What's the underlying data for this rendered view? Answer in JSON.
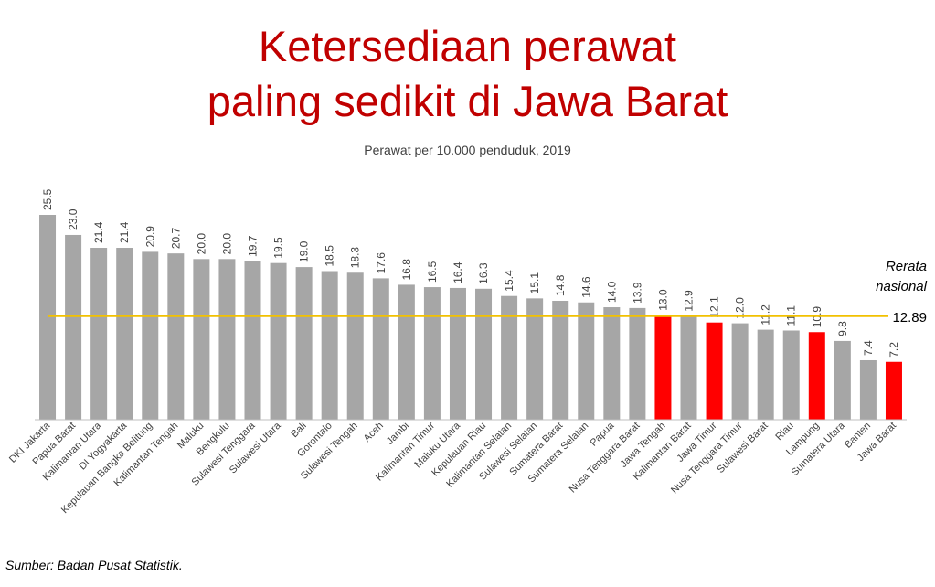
{
  "header": {
    "title_line1": "Ketersediaan perawat",
    "title_line2": "paling sedikit di Jawa Barat",
    "subtitle": "Perawat per 10.000 penduduk, 2019"
  },
  "footer": {
    "source": "Sumber: Badan Pusat Statistik."
  },
  "colors": {
    "title": "#c00000",
    "bar_default": "#a6a6a6",
    "bar_highlight": "#ff0000",
    "reference_line": "#f2c100"
  },
  "chart_data": {
    "type": "bar",
    "title": "Ketersediaan perawat paling sedikit di Jawa Barat",
    "subtitle": "Perawat per 10.000 penduduk, 2019",
    "categories": [
      "DKI Jakarta",
      "Papua Barat",
      "Kalimantan Utara",
      "DI Yogyakarta",
      "Kepulauan Bangka Belitung",
      "Kalimantan Tengah",
      "Maluku",
      "Bengkulu",
      "Sulawesi Tenggara",
      "Sulawesi Utara",
      "Bali",
      "Gorontalo",
      "Sulawesi Tengah",
      "Aceh",
      "Jambi",
      "Kalimantan Timur",
      "Maluku Utara",
      "Kepulauan Riau",
      "Kalimantan Selatan",
      "Sulawesi Selatan",
      "Sumatera Barat",
      "Sumatera Selatan",
      "Papua",
      "Nusa Tenggara Barat",
      "Jawa Tengah",
      "Kalimantan Barat",
      "Jawa Timur",
      "Nusa Tenggara Timur",
      "Sulawesi Barat",
      "Riau",
      "Lampung",
      "Sumatera Utara",
      "Banten",
      "Jawa Barat"
    ],
    "values": [
      25.5,
      23.0,
      21.4,
      21.4,
      20.9,
      20.7,
      20.0,
      20.0,
      19.7,
      19.5,
      19.0,
      18.5,
      18.3,
      17.6,
      16.8,
      16.5,
      16.4,
      16.3,
      15.4,
      15.1,
      14.8,
      14.6,
      14.0,
      13.9,
      13.0,
      12.9,
      12.1,
      12.0,
      11.2,
      11.1,
      10.9,
      9.8,
      7.4,
      7.2
    ],
    "highlighted": [
      "Jawa Tengah",
      "Jawa Timur",
      "Lampung",
      "Jawa Barat"
    ],
    "reference_line": {
      "label_line1": "Rerata",
      "label_line2": "nasional",
      "value": 12.89,
      "value_label": "12.89"
    },
    "ylim": [
      0,
      25.5
    ],
    "grid": false,
    "legend": "none"
  }
}
